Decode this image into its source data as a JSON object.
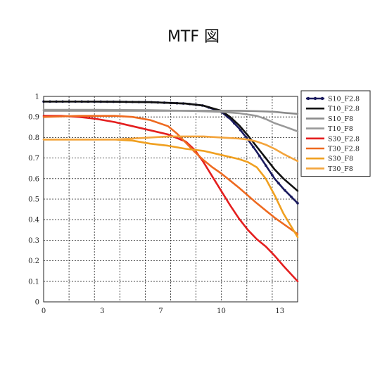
{
  "chart_data": {
    "type": "line",
    "title": "MTF 図",
    "xlabel": "",
    "ylabel": "",
    "xlim": [
      0,
      14.3
    ],
    "ylim": [
      0,
      1
    ],
    "x_tick_labels": [
      "0",
      "3",
      "7",
      "10",
      "13"
    ],
    "x_tick_values": [
      0,
      3.3,
      6.6,
      10,
      13.3
    ],
    "y_tick_labels": [
      "0",
      "0.1",
      "0.2",
      "0.3",
      "0.4",
      "0.5",
      "0.6",
      "0.7",
      "0.8",
      "0.9",
      "1"
    ],
    "grid": true,
    "legend_position": "right",
    "series": [
      {
        "name": "S10_F2.8",
        "color": "#1a1a5e",
        "marker": true,
        "x": [
          0,
          2,
          4,
          6,
          8,
          9,
          10,
          10.5,
          11,
          11.5,
          12,
          12.5,
          13,
          13.5,
          14.3
        ],
        "y": [
          0.975,
          0.975,
          0.974,
          0.972,
          0.965,
          0.955,
          0.925,
          0.89,
          0.845,
          0.79,
          0.73,
          0.665,
          0.6,
          0.55,
          0.48
        ]
      },
      {
        "name": "T10_F2.8",
        "color": "#111111",
        "marker": false,
        "x": [
          0,
          2,
          4,
          6,
          8,
          9,
          10,
          10.5,
          11,
          11.5,
          12,
          12.5,
          13,
          13.5,
          14.3
        ],
        "y": [
          0.975,
          0.975,
          0.974,
          0.972,
          0.965,
          0.955,
          0.93,
          0.9,
          0.86,
          0.81,
          0.755,
          0.7,
          0.645,
          0.6,
          0.54
        ]
      },
      {
        "name": "S10_F8",
        "color": "#8c8c8c",
        "marker": false,
        "x": [
          0,
          3,
          6,
          9,
          10,
          11,
          12,
          13,
          13.6,
          14.3
        ],
        "y": [
          0.93,
          0.93,
          0.93,
          0.93,
          0.93,
          0.93,
          0.928,
          0.925,
          0.92,
          0.915
        ]
      },
      {
        "name": "T10_F8",
        "color": "#999999",
        "marker": false,
        "x": [
          0,
          3,
          6,
          8,
          10,
          11,
          12,
          12.5,
          13,
          13.5,
          14.3
        ],
        "y": [
          0.935,
          0.935,
          0.933,
          0.93,
          0.925,
          0.918,
          0.905,
          0.89,
          0.87,
          0.855,
          0.83
        ]
      },
      {
        "name": "S30_F2.8",
        "color": "#e41e1e",
        "marker": false,
        "x": [
          0,
          1,
          2,
          3,
          4,
          5,
          6,
          7,
          8,
          8.5,
          9,
          9.5,
          10,
          10.5,
          11,
          11.5,
          12,
          12.5,
          13,
          13.5,
          14.3
        ],
        "y": [
          0.905,
          0.905,
          0.9,
          0.89,
          0.875,
          0.855,
          0.835,
          0.815,
          0.78,
          0.74,
          0.68,
          0.61,
          0.54,
          0.47,
          0.405,
          0.35,
          0.305,
          0.27,
          0.225,
          0.175,
          0.1
        ]
      },
      {
        "name": "T30_F2.8",
        "color": "#ee6a20",
        "marker": false,
        "x": [
          0,
          2,
          4,
          5,
          6,
          7,
          7.5,
          8,
          8.5,
          9,
          9.5,
          10,
          10.5,
          11,
          12,
          13,
          14.3
        ],
        "y": [
          0.9,
          0.905,
          0.905,
          0.9,
          0.885,
          0.855,
          0.82,
          0.775,
          0.73,
          0.69,
          0.655,
          0.625,
          0.59,
          0.555,
          0.48,
          0.41,
          0.33
        ]
      },
      {
        "name": "S30_F8",
        "color": "#f0a020",
        "marker": false,
        "x": [
          0,
          2,
          4,
          5,
          6,
          7,
          8,
          9,
          10,
          11,
          11.5,
          12,
          12.5,
          13,
          13.5,
          14.3
        ],
        "y": [
          0.79,
          0.79,
          0.79,
          0.785,
          0.77,
          0.76,
          0.745,
          0.735,
          0.715,
          0.695,
          0.68,
          0.655,
          0.6,
          0.52,
          0.43,
          0.315
        ]
      },
      {
        "name": "T30_F8",
        "color": "#f3a43c",
        "marker": false,
        "x": [
          0,
          2,
          4,
          5,
          6,
          7,
          8,
          9,
          10,
          11,
          11.5,
          12,
          12.5,
          13,
          13.5,
          14.3
        ],
        "y": [
          0.79,
          0.79,
          0.79,
          0.795,
          0.8,
          0.805,
          0.805,
          0.805,
          0.8,
          0.795,
          0.79,
          0.78,
          0.765,
          0.745,
          0.72,
          0.685
        ]
      }
    ]
  }
}
